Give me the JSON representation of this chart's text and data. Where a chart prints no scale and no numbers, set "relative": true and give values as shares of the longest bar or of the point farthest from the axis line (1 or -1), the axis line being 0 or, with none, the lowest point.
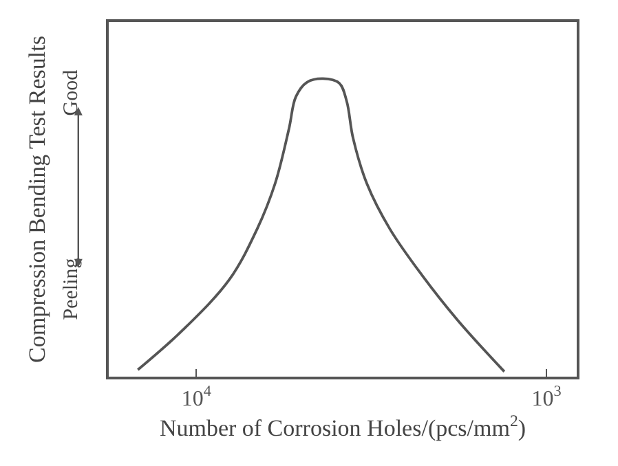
{
  "chart_data": {
    "type": "line",
    "relative": true,
    "xlabel": "Number of Corrosion Holes/(pcs/mm$^{2}$)",
    "ylabel": "Compression Bending Test Results",
    "annotations": [
      "Good",
      "Peeling"
    ],
    "log": "x",
    "xlim": [
      17800,
      820
    ],
    "xticks": [
      {
        "value": 10000,
        "label": "10$^{4}$"
      },
      {
        "value": 1000,
        "label": "10$^{3}$"
      }
    ],
    "marker": "none",
    "line_style": "solid",
    "series": [
      {
        "color": "#555555",
        "x": [
          14700,
          10900,
          8050,
          6710,
          5960,
          5440,
          5200,
          4830,
          4350,
          3910,
          3720,
          3570,
          3260,
          2800,
          2270,
          1790,
          1320
        ],
        "values": [
          0.023,
          0.158,
          0.326,
          0.495,
          0.648,
          0.832,
          0.939,
          0.988,
          1,
          0.985,
          0.923,
          0.801,
          0.648,
          0.495,
          0.341,
          0.188,
          0.017
        ]
      }
    ]
  }
}
